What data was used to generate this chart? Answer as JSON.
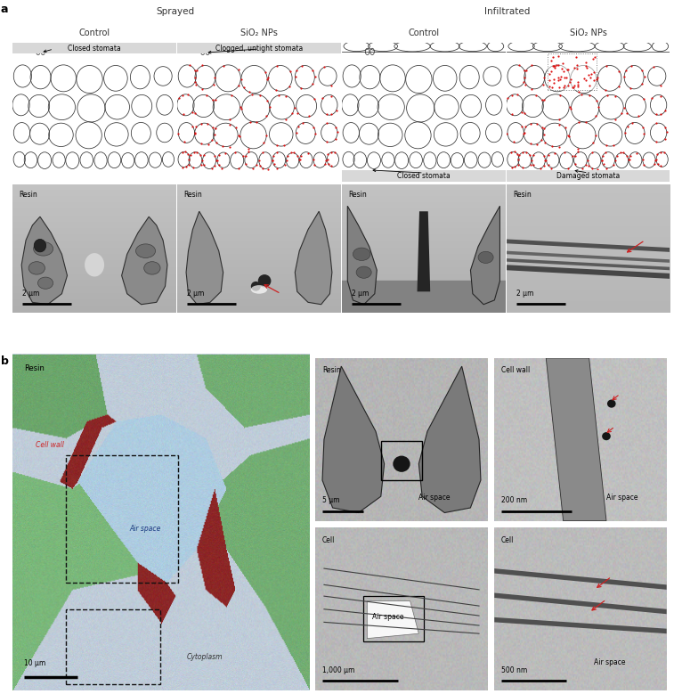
{
  "fig_width": 7.57,
  "fig_height": 7.79,
  "bg_color": "#ffffff",
  "panel_a_label": "a",
  "panel_b_label": "b",
  "sprayed_label": "Sprayed",
  "infiltrated_label": "Infiltrated",
  "col_headers": [
    "Control",
    "SiO₂ NPs",
    "Control",
    "SiO₂ NPs"
  ],
  "resin_label": "Resin",
  "scale_2um": "2 μm",
  "header_gray": "#c0c0c0",
  "subheader_gray": "#b0b0b0",
  "cell_color": "#333333",
  "np_color": "#dd1111",
  "illu_bg": "#ffffff",
  "illu_label_bg": "#d8d8d8",
  "tem_bg": "#b5b5b5",
  "panel_b_main_bg": "#c5cdd5",
  "green_cell": "#7dbf7d",
  "green_cell2": "#6aac6a",
  "red_cw": "#8b2020",
  "air_blue": "#aecede",
  "scale_10um": "10 μm",
  "scale_5um": "5 μm",
  "scale_200nm": "200 nm",
  "scale_1000um": "1,000 μm",
  "scale_500nm": "500 nm",
  "lbl_resin": "Resin",
  "lbl_cell_wall": "Cell wall",
  "lbl_air_space": "Air space",
  "lbl_cytoplasm": "Cytoplasm",
  "lbl_cell": "Cell"
}
